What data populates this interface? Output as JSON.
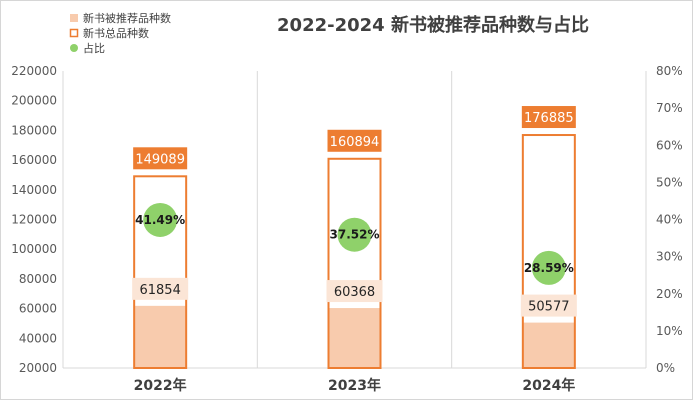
{
  "chart_data": {
    "type": "bar",
    "title": "2022-2024 新书被推荐品种数与占比",
    "categories": [
      "2022年",
      "2023年",
      "2024年"
    ],
    "series": [
      {
        "name": "新书被推荐品种数",
        "values": [
          61854,
          60368,
          50577
        ],
        "color": "#f8cbad"
      },
      {
        "name": "新书总品种数",
        "values": [
          149089,
          160894,
          176885
        ],
        "color": "#ed7d31"
      },
      {
        "name": "占比",
        "values": [
          0.4149,
          0.3752,
          0.2859
        ],
        "labels": [
          "41.49%",
          "37.52%",
          "28.59%"
        ],
        "color": "#8fd16a",
        "axis": "secondary"
      }
    ],
    "y_primary": {
      "min": 20000,
      "max": 220000,
      "step": 20000,
      "ticks": [
        "20000",
        "40000",
        "60000",
        "80000",
        "100000",
        "120000",
        "140000",
        "160000",
        "180000",
        "200000",
        "220000"
      ]
    },
    "y_secondary": {
      "min": 0,
      "max": 0.8,
      "step": 0.1,
      "ticks": [
        "0%",
        "10%",
        "20%",
        "30%",
        "40%",
        "50%",
        "60%",
        "70%",
        "80%"
      ]
    },
    "grid": "vertical category separators",
    "legend_position": "top-left"
  }
}
